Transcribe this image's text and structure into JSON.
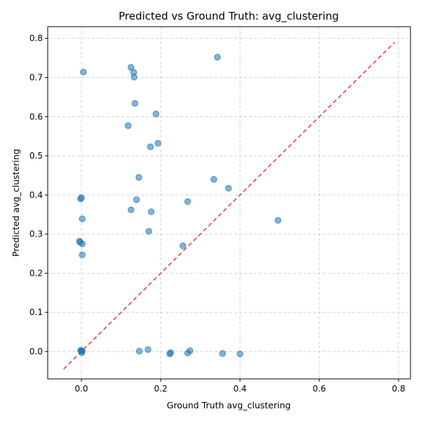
{
  "chart_data": {
    "type": "scatter",
    "title": "Predicted vs Ground Truth: avg_clustering",
    "xlabel": "Ground Truth avg_clustering",
    "ylabel": "Predicted avg_clustering",
    "xlim": [
      -0.085,
      0.83
    ],
    "ylim": [
      -0.07,
      0.83
    ],
    "xticks": [
      0.0,
      0.2,
      0.4,
      0.6,
      0.8
    ],
    "yticks": [
      0.0,
      0.1,
      0.2,
      0.3,
      0.4,
      0.5,
      0.6,
      0.7,
      0.8
    ],
    "xtick_labels": [
      "0.0",
      "0.2",
      "0.4",
      "0.6",
      "0.8"
    ],
    "ytick_labels": [
      "0.0",
      "0.1",
      "0.2",
      "0.3",
      "0.4",
      "0.5",
      "0.6",
      "0.7",
      "0.8"
    ],
    "grid": true,
    "point_color": "#1f77b4",
    "reference_line": {
      "from": [
        -0.045,
        -0.045
      ],
      "to": [
        0.79,
        0.79
      ],
      "color": "#e8403d"
    },
    "points": [
      {
        "x": 0.005,
        "y": 0.714
      },
      {
        "x": 0.125,
        "y": 0.726
      },
      {
        "x": 0.132,
        "y": 0.713
      },
      {
        "x": 0.133,
        "y": 0.701
      },
      {
        "x": 0.343,
        "y": 0.752
      },
      {
        "x": 0.135,
        "y": 0.634
      },
      {
        "x": 0.188,
        "y": 0.607
      },
      {
        "x": 0.118,
        "y": 0.577
      },
      {
        "x": 0.193,
        "y": 0.532
      },
      {
        "x": 0.174,
        "y": 0.523
      },
      {
        "x": 0.145,
        "y": 0.445
      },
      {
        "x": 0.334,
        "y": 0.44
      },
      {
        "x": 0.371,
        "y": 0.417
      },
      {
        "x": 0.0,
        "y": 0.393
      },
      {
        "x": -0.002,
        "y": 0.39
      },
      {
        "x": 0.139,
        "y": 0.388
      },
      {
        "x": 0.268,
        "y": 0.383
      },
      {
        "x": 0.125,
        "y": 0.362
      },
      {
        "x": 0.176,
        "y": 0.357
      },
      {
        "x": 0.002,
        "y": 0.339
      },
      {
        "x": 0.496,
        "y": 0.335
      },
      {
        "x": 0.17,
        "y": 0.307
      },
      {
        "x": -0.005,
        "y": 0.282
      },
      {
        "x": -0.003,
        "y": 0.279
      },
      {
        "x": 0.002,
        "y": 0.275
      },
      {
        "x": 0.256,
        "y": 0.27
      },
      {
        "x": 0.002,
        "y": 0.247
      },
      {
        "x": -0.002,
        "y": 0.003
      },
      {
        "x": 0.0,
        "y": 0.002
      },
      {
        "x": 0.002,
        "y": 0.001
      },
      {
        "x": 0.001,
        "y": -0.003
      },
      {
        "x": 0.146,
        "y": 0.001
      },
      {
        "x": 0.168,
        "y": 0.005
      },
      {
        "x": 0.225,
        "y": -0.003
      },
      {
        "x": 0.223,
        "y": -0.006
      },
      {
        "x": 0.274,
        "y": 0.002
      },
      {
        "x": 0.268,
        "y": -0.004
      },
      {
        "x": 0.356,
        "y": -0.005
      },
      {
        "x": 0.4,
        "y": -0.006
      }
    ]
  }
}
